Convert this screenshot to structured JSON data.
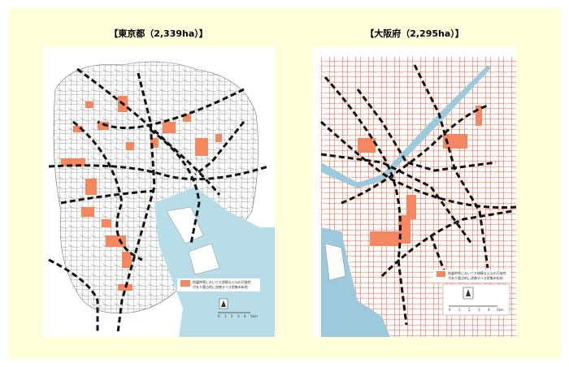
{
  "maps": [
    {
      "title": "【東京都（2,339ha）】",
      "legend": [
        "地震時等において大規模な火災の可能性",
        "があり重点的に改善すべき密集市街地"
      ],
      "scale": [
        "0",
        "1",
        "2",
        "3",
        "4",
        "5km"
      ]
    },
    {
      "title": "【大阪府（2,295ha）】",
      "legend": [
        "地震時等において大規模な火災の可能性",
        "があり重点的に改善すべき密集市街地"
      ],
      "scale": [
        "0",
        "1",
        "2",
        "3",
        "4",
        "5km"
      ]
    }
  ]
}
